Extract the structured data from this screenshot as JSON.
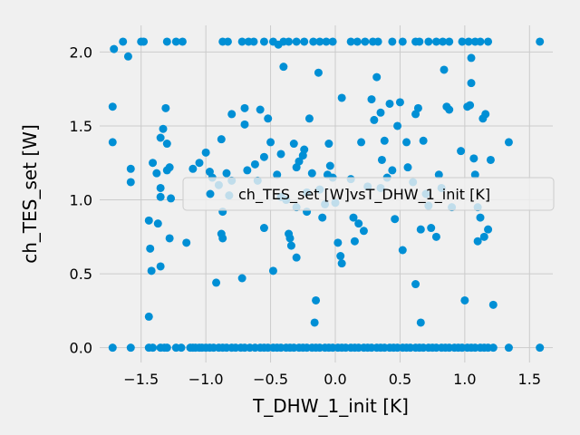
{
  "chart_data": {
    "type": "scatter",
    "xlabel": "T_DHW_1_init [K]",
    "ylabel": "ch_TES_set [W]",
    "xlim": [
      -1.82,
      1.68
    ],
    "ylim": [
      -0.1,
      2.18
    ],
    "xticks": [
      -1.5,
      -1.0,
      -0.5,
      0.0,
      0.5,
      1.0,
      1.5
    ],
    "xtick_labels": [
      "−1.5",
      "−1.0",
      "−0.5",
      "0.0",
      "0.5",
      "1.0",
      "1.5"
    ],
    "yticks": [
      0.0,
      0.5,
      1.0,
      1.5,
      2.0
    ],
    "ytick_labels": [
      "0.0",
      "0.5",
      "1.0",
      "1.5",
      "2.0"
    ],
    "grid": true,
    "legend_position": "center-right",
    "marker_color": "#008fd5",
    "series": [
      {
        "name": "ch_TES_set [W]vsT_DHW_1_init [K]",
        "points": [
          [
            -1.72,
            0.0
          ],
          [
            -1.58,
            0.0
          ],
          [
            -1.44,
            0.0
          ],
          [
            -1.41,
            0.0
          ],
          [
            -1.35,
            0.0
          ],
          [
            -1.32,
            0.0
          ],
          [
            -1.3,
            0.0
          ],
          [
            -1.23,
            0.0
          ],
          [
            -1.19,
            0.0
          ],
          [
            -1.12,
            0.0
          ],
          [
            -1.1,
            0.0
          ],
          [
            -1.08,
            0.0
          ],
          [
            -1.05,
            0.0
          ],
          [
            -1.03,
            0.0
          ],
          [
            -1.0,
            0.0
          ],
          [
            -0.97,
            0.0
          ],
          [
            -0.94,
            0.0
          ],
          [
            -0.9,
            0.0
          ],
          [
            -0.87,
            0.0
          ],
          [
            -0.84,
            0.0
          ],
          [
            -0.8,
            0.0
          ],
          [
            -0.77,
            0.0
          ],
          [
            -0.73,
            0.0
          ],
          [
            -0.7,
            0.0
          ],
          [
            -0.66,
            0.0
          ],
          [
            -0.62,
            0.0
          ],
          [
            -0.58,
            0.0
          ],
          [
            -0.55,
            0.0
          ],
          [
            -0.52,
            0.0
          ],
          [
            -0.48,
            0.0
          ],
          [
            -0.45,
            0.0
          ],
          [
            -0.42,
            0.0
          ],
          [
            -0.38,
            0.0
          ],
          [
            -0.35,
            0.0
          ],
          [
            -0.32,
            0.0
          ],
          [
            -0.28,
            0.0
          ],
          [
            -0.25,
            0.0
          ],
          [
            -0.22,
            0.0
          ],
          [
            -0.18,
            0.0
          ],
          [
            -0.15,
            0.0
          ],
          [
            -0.12,
            0.0
          ],
          [
            -0.08,
            0.0
          ],
          [
            -0.05,
            0.0
          ],
          [
            -0.02,
            0.0
          ],
          [
            0.02,
            0.0
          ],
          [
            0.05,
            0.0
          ],
          [
            0.08,
            0.0
          ],
          [
            0.12,
            0.0
          ],
          [
            0.15,
            0.0
          ],
          [
            0.18,
            0.0
          ],
          [
            0.22,
            0.0
          ],
          [
            0.25,
            0.0
          ],
          [
            0.28,
            0.0
          ],
          [
            0.32,
            0.0
          ],
          [
            0.35,
            0.0
          ],
          [
            0.38,
            0.0
          ],
          [
            0.42,
            0.0
          ],
          [
            0.45,
            0.0
          ],
          [
            0.48,
            0.0
          ],
          [
            0.52,
            0.0
          ],
          [
            0.55,
            0.0
          ],
          [
            0.58,
            0.0
          ],
          [
            0.62,
            0.0
          ],
          [
            0.65,
            0.0
          ],
          [
            0.68,
            0.0
          ],
          [
            0.72,
            0.0
          ],
          [
            0.75,
            0.0
          ],
          [
            0.78,
            0.0
          ],
          [
            0.82,
            0.0
          ],
          [
            0.85,
            0.0
          ],
          [
            0.88,
            0.0
          ],
          [
            0.92,
            0.0
          ],
          [
            0.95,
            0.0
          ],
          [
            0.98,
            0.0
          ],
          [
            1.02,
            0.0
          ],
          [
            1.05,
            0.0
          ],
          [
            1.08,
            0.0
          ],
          [
            1.12,
            0.0
          ],
          [
            1.15,
            0.0
          ],
          [
            1.18,
            0.0
          ],
          [
            1.22,
            0.0
          ],
          [
            1.34,
            0.0
          ],
          [
            1.58,
            0.0
          ],
          [
            -1.71,
            2.02
          ],
          [
            -1.64,
            2.07
          ],
          [
            -1.6,
            1.97
          ],
          [
            -1.5,
            2.07
          ],
          [
            -1.48,
            2.07
          ],
          [
            -1.3,
            2.07
          ],
          [
            -1.23,
            2.07
          ],
          [
            -1.18,
            2.07
          ],
          [
            -0.87,
            2.07
          ],
          [
            -0.83,
            2.07
          ],
          [
            -0.72,
            2.07
          ],
          [
            -0.67,
            2.07
          ],
          [
            -0.63,
            2.07
          ],
          [
            -0.55,
            2.07
          ],
          [
            -0.48,
            2.07
          ],
          [
            -0.44,
            2.05
          ],
          [
            -0.4,
            2.07
          ],
          [
            -0.36,
            2.07
          ],
          [
            -0.3,
            2.07
          ],
          [
            -0.24,
            2.07
          ],
          [
            -0.17,
            2.07
          ],
          [
            -0.12,
            2.07
          ],
          [
            -0.07,
            2.07
          ],
          [
            -0.02,
            2.07
          ],
          [
            0.12,
            2.07
          ],
          [
            0.17,
            2.07
          ],
          [
            0.23,
            2.07
          ],
          [
            0.29,
            2.07
          ],
          [
            0.33,
            2.07
          ],
          [
            0.44,
            2.07
          ],
          [
            0.52,
            2.07
          ],
          [
            0.62,
            2.07
          ],
          [
            0.65,
            2.07
          ],
          [
            0.72,
            2.07
          ],
          [
            0.78,
            2.07
          ],
          [
            0.83,
            2.07
          ],
          [
            0.88,
            2.07
          ],
          [
            0.98,
            2.07
          ],
          [
            1.03,
            2.07
          ],
          [
            1.08,
            2.07
          ],
          [
            1.12,
            2.07
          ],
          [
            1.18,
            2.07
          ],
          [
            1.58,
            2.07
          ],
          [
            -1.72,
            1.63
          ],
          [
            -1.72,
            1.39
          ],
          [
            -1.58,
            1.21
          ],
          [
            -1.58,
            1.12
          ],
          [
            -1.44,
            0.86
          ],
          [
            -1.43,
            0.67
          ],
          [
            -1.42,
            0.52
          ],
          [
            -1.44,
            0.21
          ],
          [
            -1.41,
            1.25
          ],
          [
            -1.35,
            1.42
          ],
          [
            -1.33,
            1.48
          ],
          [
            -1.31,
            1.62
          ],
          [
            -1.3,
            1.2
          ],
          [
            -1.28,
            1.22
          ],
          [
            -1.35,
            1.08
          ],
          [
            -1.35,
            1.02
          ],
          [
            -1.37,
            0.84
          ],
          [
            -1.35,
            0.55
          ],
          [
            -1.28,
            0.74
          ],
          [
            -1.38,
            1.18
          ],
          [
            -1.3,
            1.38
          ],
          [
            -1.27,
            1.01
          ],
          [
            -1.15,
            0.71
          ],
          [
            -1.1,
            1.21
          ],
          [
            -1.05,
            1.25
          ],
          [
            -1.0,
            1.32
          ],
          [
            -0.97,
            1.19
          ],
          [
            -0.95,
            1.15
          ],
          [
            -0.9,
            1.1
          ],
          [
            -0.88,
            1.41
          ],
          [
            -0.87,
            0.92
          ],
          [
            -0.88,
            0.77
          ],
          [
            -0.87,
            0.74
          ],
          [
            -0.92,
            0.44
          ],
          [
            -0.84,
            1.18
          ],
          [
            -0.82,
            1.03
          ],
          [
            -0.8,
            1.13
          ],
          [
            -0.8,
            1.58
          ],
          [
            -0.72,
            0.47
          ],
          [
            -0.7,
            1.62
          ],
          [
            -0.7,
            1.51
          ],
          [
            -0.68,
            1.2
          ],
          [
            -0.62,
            1.24
          ],
          [
            -0.6,
            1.13
          ],
          [
            -0.58,
            1.61
          ],
          [
            -0.55,
            1.29
          ],
          [
            -0.52,
            1.55
          ],
          [
            -0.5,
            1.39
          ],
          [
            -0.48,
            0.52
          ],
          [
            -0.45,
            1.17
          ],
          [
            -0.42,
            1.31
          ],
          [
            -0.4,
            1.9
          ],
          [
            -0.38,
            1.0
          ],
          [
            -0.36,
            0.77
          ],
          [
            -0.35,
            0.74
          ],
          [
            -0.34,
            0.69
          ],
          [
            -0.32,
            1.38
          ],
          [
            -0.3,
            1.22
          ],
          [
            -0.3,
            0.95
          ],
          [
            -0.3,
            0.61
          ],
          [
            -0.28,
            1.26
          ],
          [
            -0.25,
            1.3
          ],
          [
            -0.24,
            1.34
          ],
          [
            -0.22,
            1.05
          ],
          [
            -0.22,
            0.92
          ],
          [
            -0.2,
            1.55
          ],
          [
            -0.18,
            1.18
          ],
          [
            -0.16,
            0.17
          ],
          [
            -0.15,
            0.32
          ],
          [
            -0.13,
            1.86
          ],
          [
            -0.12,
            1.07
          ],
          [
            -0.1,
            0.88
          ],
          [
            -0.08,
            0.97
          ],
          [
            -0.06,
            1.17
          ],
          [
            -0.04,
            1.23
          ],
          [
            -0.02,
            1.15
          ],
          [
            0.0,
            0.98
          ],
          [
            0.02,
            0.71
          ],
          [
            0.04,
            0.62
          ],
          [
            0.05,
            0.57
          ],
          [
            0.05,
            1.69
          ],
          [
            0.12,
            1.14
          ],
          [
            0.14,
            0.88
          ],
          [
            0.15,
            0.72
          ],
          [
            0.2,
            1.39
          ],
          [
            0.22,
            0.79
          ],
          [
            0.25,
            1.09
          ],
          [
            0.28,
            1.68
          ],
          [
            0.3,
            1.54
          ],
          [
            0.32,
            1.83
          ],
          [
            0.35,
            1.59
          ],
          [
            0.36,
            1.27
          ],
          [
            0.38,
            1.4
          ],
          [
            0.4,
            1.15
          ],
          [
            0.42,
            1.65
          ],
          [
            0.44,
            1.2
          ],
          [
            0.46,
            0.87
          ],
          [
            0.48,
            1.5
          ],
          [
            0.5,
            1.66
          ],
          [
            0.52,
            0.66
          ],
          [
            0.55,
            1.39
          ],
          [
            0.56,
            1.22
          ],
          [
            0.6,
            1.12
          ],
          [
            0.62,
            1.58
          ],
          [
            0.62,
            0.43
          ],
          [
            0.64,
            1.62
          ],
          [
            0.66,
            0.8
          ],
          [
            0.66,
            0.17
          ],
          [
            0.68,
            1.4
          ],
          [
            0.7,
            1.04
          ],
          [
            0.72,
            0.96
          ],
          [
            0.74,
            0.81
          ],
          [
            0.78,
            0.75
          ],
          [
            0.8,
            1.17
          ],
          [
            0.82,
            1.08
          ],
          [
            0.84,
            1.88
          ],
          [
            0.86,
            1.63
          ],
          [
            0.88,
            1.61
          ],
          [
            0.9,
            0.95
          ],
          [
            0.97,
            1.33
          ],
          [
            1.0,
            0.32
          ],
          [
            1.02,
            1.63
          ],
          [
            1.04,
            1.64
          ],
          [
            1.05,
            1.79
          ],
          [
            1.08,
            1.17
          ],
          [
            1.1,
            0.95
          ],
          [
            1.1,
            0.72
          ],
          [
            1.12,
            0.88
          ],
          [
            1.15,
            0.75
          ],
          [
            1.16,
            1.58
          ],
          [
            1.18,
            0.8
          ],
          [
            1.2,
            1.27
          ],
          [
            1.22,
            0.29
          ],
          [
            1.34,
            1.39
          ],
          [
            1.05,
            1.96
          ],
          [
            1.07,
            1.28
          ],
          [
            1.14,
            1.55
          ],
          [
            -0.05,
            1.38
          ],
          [
            0.35,
            1.08
          ],
          [
            -0.42,
            1.02
          ],
          [
            -0.55,
            0.81
          ],
          [
            0.18,
            0.84
          ]
        ]
      }
    ]
  }
}
